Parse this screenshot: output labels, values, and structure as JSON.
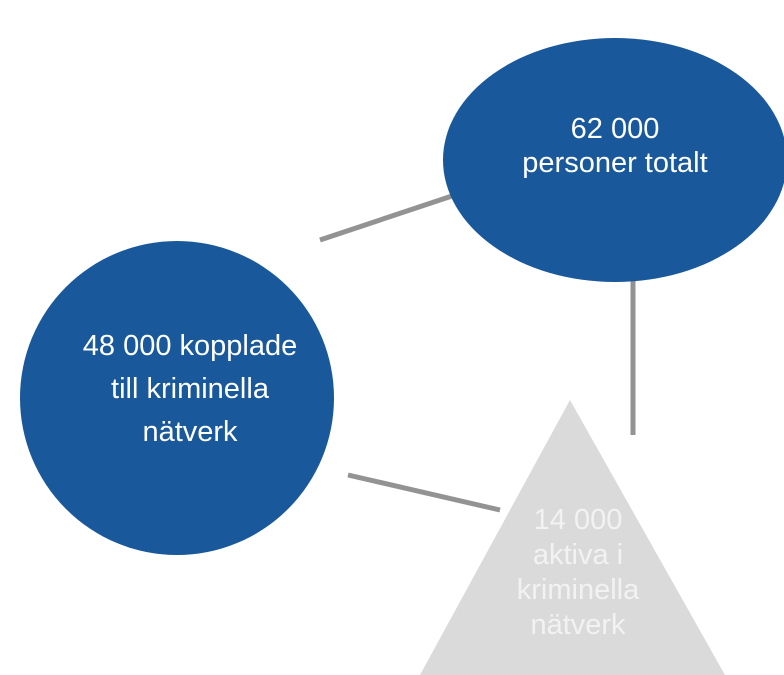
{
  "nodes": [
    {
      "lines": [
        "62 000",
        "personer totalt"
      ]
    },
    {
      "lines": [
        "48 000 kopplade",
        "till kriminella",
        "nätverk"
      ]
    },
    {
      "lines": [
        "14 000",
        "aktiva i",
        "kriminella",
        "nätverk"
      ]
    }
  ]
}
